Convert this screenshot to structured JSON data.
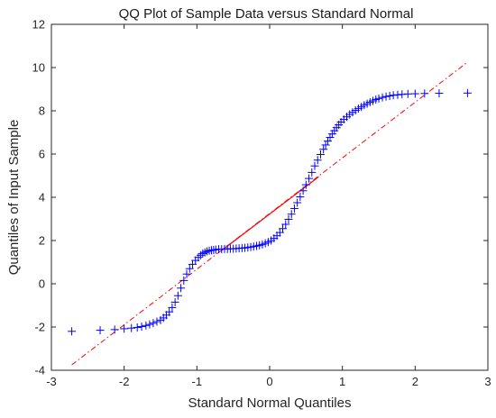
{
  "chart_data": {
    "type": "scatter",
    "title": "QQ Plot of Sample Data versus Standard Normal",
    "xlabel": "Standard Normal Quantiles",
    "ylabel": "Quantiles of Input Sample",
    "xlim": [
      -3,
      3
    ],
    "ylim": [
      -4,
      12
    ],
    "xticks": [
      -3,
      -2,
      -1,
      0,
      1,
      2,
      3
    ],
    "yticks": [
      -4,
      -2,
      0,
      2,
      4,
      6,
      8,
      10,
      12
    ],
    "grid": false,
    "marker": "+",
    "marker_color": "#0000ff",
    "reference_line": {
      "color": "#ff0000",
      "solid_segment": {
        "x": [
          -0.675,
          0.675
        ],
        "y": [
          1.5,
          4.95
        ]
      },
      "dash_dot_extension": {
        "x": [
          -2.72,
          2.72
        ],
        "y": [
          -3.75,
          10.25
        ]
      }
    },
    "series": [
      {
        "x": [
          -2.72,
          -2.33,
          -2.13,
          -2.0,
          -1.9,
          -1.82,
          -1.76,
          -1.7,
          -1.65,
          -1.6,
          -1.55,
          -1.5,
          -1.46,
          -1.42,
          -1.38,
          -1.34,
          -1.3,
          -1.26,
          -1.22,
          -1.18,
          -1.14,
          -1.1,
          -1.06,
          -1.02,
          -0.98,
          -0.95,
          -0.92,
          -0.89,
          -0.86,
          -0.83,
          -0.8,
          -0.77,
          -0.74,
          -0.7,
          -0.66,
          -0.62,
          -0.58,
          -0.54,
          -0.5,
          -0.46,
          -0.42,
          -0.38,
          -0.34,
          -0.3,
          -0.26,
          -0.22,
          -0.18,
          -0.14,
          -0.1,
          -0.06,
          -0.02,
          0.02,
          0.06,
          0.1,
          0.14,
          0.18,
          0.22,
          0.26,
          0.3,
          0.34,
          0.38,
          0.42,
          0.46,
          0.5,
          0.54,
          0.58,
          0.62,
          0.66,
          0.7,
          0.74,
          0.77,
          0.8,
          0.83,
          0.86,
          0.89,
          0.92,
          0.95,
          0.98,
          1.02,
          1.06,
          1.1,
          1.14,
          1.18,
          1.22,
          1.26,
          1.3,
          1.34,
          1.38,
          1.42,
          1.46,
          1.5,
          1.55,
          1.6,
          1.65,
          1.7,
          1.76,
          1.82,
          1.9,
          2.0,
          2.13,
          2.33,
          2.72
        ],
        "y": [
          -2.2,
          -2.15,
          -2.12,
          -2.08,
          -2.05,
          -2.02,
          -1.98,
          -1.93,
          -1.88,
          -1.82,
          -1.75,
          -1.68,
          -1.58,
          -1.45,
          -1.3,
          -1.1,
          -0.85,
          -0.55,
          -0.2,
          0.15,
          0.45,
          0.7,
          0.9,
          1.08,
          1.22,
          1.32,
          1.4,
          1.45,
          1.5,
          1.53,
          1.55,
          1.56,
          1.58,
          1.6,
          1.6,
          1.61,
          1.61,
          1.62,
          1.62,
          1.63,
          1.64,
          1.65,
          1.66,
          1.68,
          1.7,
          1.72,
          1.75,
          1.78,
          1.82,
          1.87,
          1.93,
          2.0,
          2.1,
          2.22,
          2.37,
          2.55,
          2.75,
          2.98,
          3.22,
          3.48,
          3.75,
          4.02,
          4.3,
          4.58,
          4.87,
          5.15,
          5.45,
          5.72,
          5.98,
          6.22,
          6.42,
          6.6,
          6.77,
          6.93,
          7.08,
          7.22,
          7.35,
          7.48,
          7.6,
          7.72,
          7.83,
          7.93,
          8.02,
          8.1,
          8.18,
          8.26,
          8.33,
          8.4,
          8.46,
          8.52,
          8.57,
          8.62,
          8.66,
          8.69,
          8.72,
          8.74,
          8.76,
          8.78,
          8.79,
          8.8,
          8.81,
          8.82
        ]
      }
    ]
  }
}
